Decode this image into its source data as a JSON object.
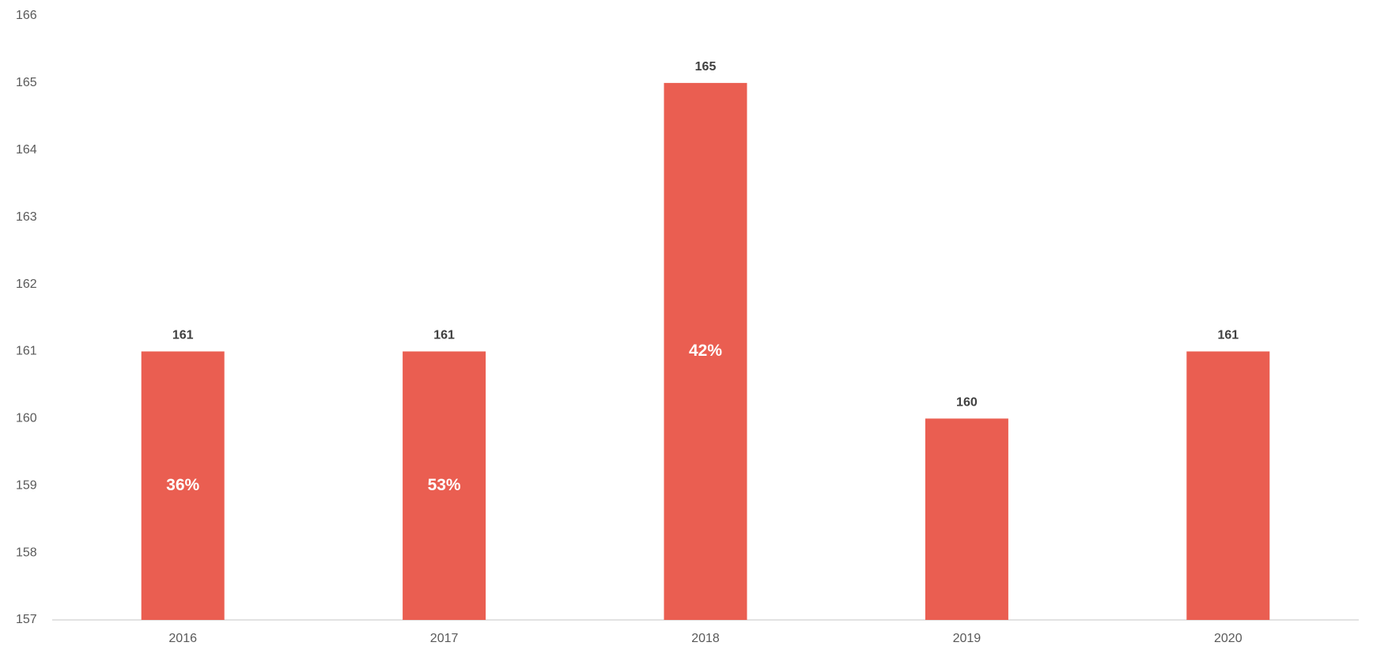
{
  "chart_data": {
    "type": "bar",
    "categories": [
      "2016",
      "2017",
      "2018",
      "2019",
      "2020"
    ],
    "values": [
      161,
      161,
      165,
      160,
      161
    ],
    "inner_labels": [
      "36%",
      "53%",
      "42%",
      null,
      null
    ],
    "color": "#ea5e51",
    "ylim": [
      157,
      166
    ],
    "yticks": [
      157,
      158,
      159,
      160,
      161,
      162,
      163,
      164,
      165,
      166
    ],
    "grid": false
  }
}
